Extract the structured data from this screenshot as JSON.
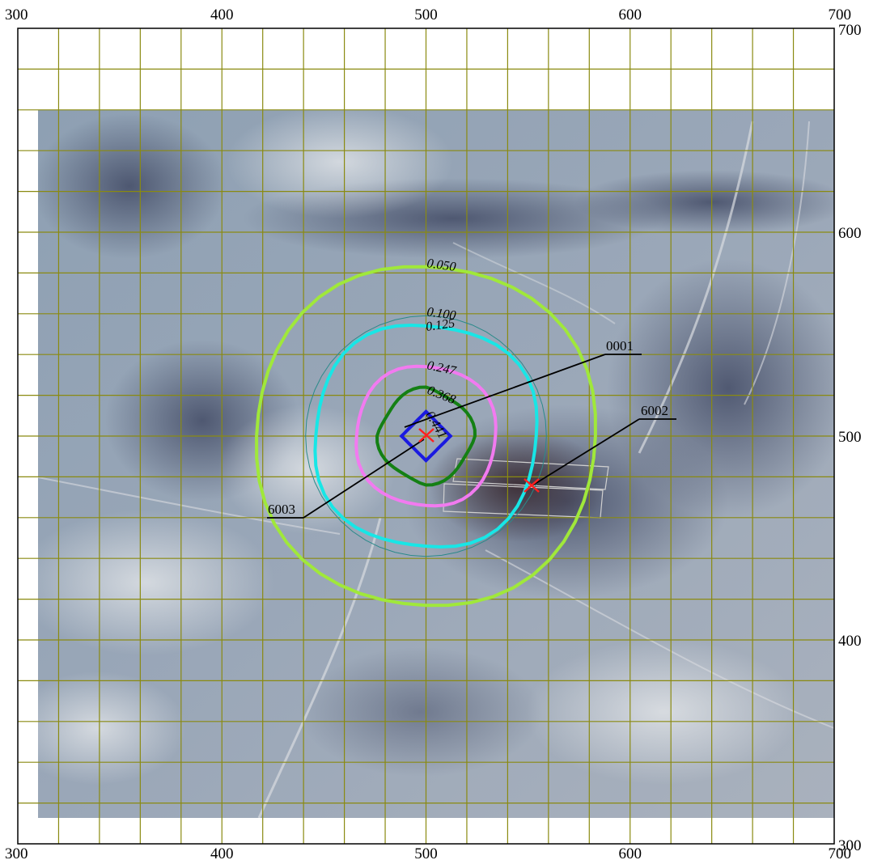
{
  "axes": {
    "x_ticks": [
      "300",
      "400",
      "500",
      "600",
      "700"
    ],
    "y_ticks": [
      "700",
      "600",
      "500",
      "400",
      "300"
    ]
  },
  "extent": {
    "x": [
      300,
      700
    ],
    "y": [
      300,
      700
    ]
  },
  "grid_step": 20,
  "colors": {
    "grid": "#8a8a10",
    "contour_050": "#a0e83a",
    "contour_100": "#2a8a8a",
    "contour_125": "#18e6e6",
    "contour_247": "#f27af0",
    "contour_368": "#148014",
    "contour_441": "#1a1ae0",
    "source_marker": "#ff2020",
    "leader": "#000000"
  },
  "contours": [
    {
      "label": "0.050",
      "radius": 83
    },
    {
      "label": "0.100",
      "radius": 59
    },
    {
      "label": "0.125",
      "radius": 54
    },
    {
      "label": "0.247",
      "radius": 34
    },
    {
      "label": "0.368",
      "radius": 24
    },
    {
      "label": "0.441",
      "radius": 12
    }
  ],
  "sources": [
    {
      "id": "0001",
      "x": 500,
      "y": 500
    },
    {
      "id": "6002",
      "x": 551,
      "y": 476
    },
    {
      "id": "6003",
      "x": 500,
      "y": 500
    }
  ]
}
